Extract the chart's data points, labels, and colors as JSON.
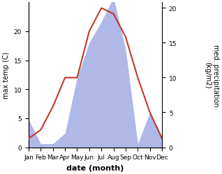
{
  "months": [
    "Jan",
    "Feb",
    "Mar",
    "Apr",
    "May",
    "Jun",
    "Jul",
    "Aug",
    "Sep",
    "Oct",
    "Nov",
    "Dec"
  ],
  "temperature": [
    1.5,
    3.0,
    7.0,
    12.0,
    12.0,
    20.0,
    24.0,
    23.0,
    19.0,
    12.0,
    6.0,
    1.5
  ],
  "precipitation": [
    4.0,
    0.5,
    0.5,
    2.0,
    10.0,
    15.0,
    18.0,
    21.5,
    14.0,
    0.5,
    5.0,
    1.5
  ],
  "temp_color": "#c0392b",
  "precip_fill_color": "#b0b8e8",
  "left_ylabel": "max temp (C)",
  "right_ylabel": "med. precipitation\n(kg/m2)",
  "xlabel": "date (month)",
  "left_ylim": [
    0,
    25
  ],
  "right_ylim": [
    0,
    20.8
  ],
  "bg_color": "#ffffff",
  "plot_bg_color": "#ffffff",
  "label_fontsize": 7,
  "tick_fontsize": 6.5
}
